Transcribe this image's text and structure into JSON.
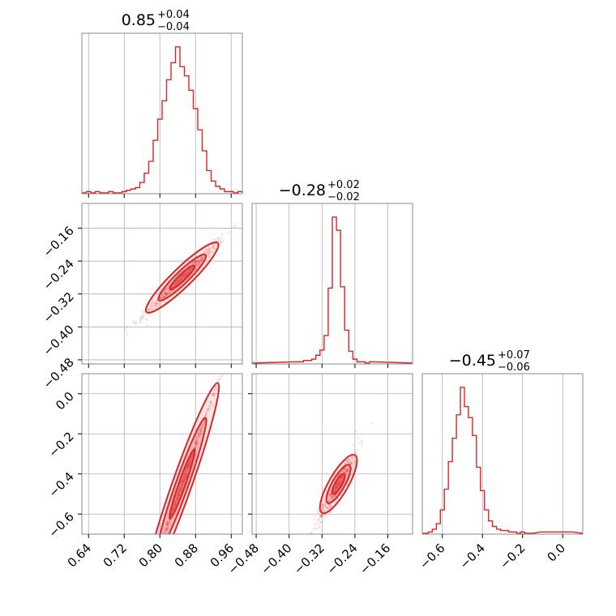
{
  "chart_data": {
    "type": "corner",
    "color": "#d62728",
    "parameters": [
      {
        "title_center": "0.85",
        "title_plus": "+0.04",
        "title_minus": "−0.04",
        "range": [
          0.625,
          0.985
        ],
        "ticks": [
          0.64,
          0.72,
          0.8,
          0.88,
          0.96
        ],
        "tick_labels": [
          "0.64",
          "0.72",
          "0.80",
          "0.88",
          "0.96"
        ]
      },
      {
        "title_center": "−0.28",
        "title_plus": "+0.02",
        "title_minus": "−0.02",
        "range": [
          -0.49,
          -0.1
        ],
        "ticks": [
          -0.48,
          -0.4,
          -0.32,
          -0.24,
          -0.16
        ],
        "tick_labels": [
          "−0.48",
          "−0.40",
          "−0.32",
          "−0.24",
          "−0.16"
        ]
      },
      {
        "title_center": "−0.45",
        "title_plus": "+0.07",
        "title_minus": "−0.06",
        "range": [
          -0.7,
          0.1
        ],
        "ticks": [
          -0.6,
          -0.4,
          -0.2,
          0.0
        ],
        "tick_labels": [
          "−0.6",
          "−0.4",
          "−0.2",
          "0.0"
        ]
      }
    ],
    "histograms": [
      {
        "x": [
          0.63,
          0.64,
          0.65,
          0.66,
          0.67,
          0.68,
          0.69,
          0.7,
          0.71,
          0.72,
          0.73,
          0.74,
          0.75,
          0.76,
          0.77,
          0.78,
          0.79,
          0.8,
          0.81,
          0.82,
          0.83,
          0.84,
          0.85,
          0.86,
          0.87,
          0.88,
          0.89,
          0.9,
          0.91,
          0.92,
          0.93,
          0.94,
          0.95,
          0.96,
          0.97,
          0.98
        ],
        "counts": [
          0,
          1,
          0,
          1,
          0,
          0,
          1,
          0,
          0,
          1,
          2,
          3,
          4,
          8,
          15,
          24,
          40,
          56,
          70,
          86,
          99,
          111,
          96,
          89,
          78,
          64,
          48,
          32,
          17,
          9,
          5,
          3,
          1,
          1,
          0,
          1
        ]
      },
      {
        "x": [
          -0.38,
          -0.37,
          -0.36,
          -0.35,
          -0.34,
          -0.33,
          -0.32,
          -0.31,
          -0.3,
          -0.29,
          -0.28,
          -0.27,
          -0.26,
          -0.25,
          -0.24,
          -0.23,
          -0.22,
          -0.21,
          -0.2
        ],
        "counts": [
          1,
          1,
          2,
          2,
          3,
          6,
          10,
          21,
          57,
          111,
          101,
          58,
          25,
          9,
          3,
          1,
          1,
          0,
          1
        ],
        "note": ""
      },
      {
        "x": [
          -0.68,
          -0.66,
          -0.64,
          -0.62,
          -0.6,
          -0.58,
          -0.56,
          -0.54,
          -0.52,
          -0.5,
          -0.48,
          -0.46,
          -0.44,
          -0.42,
          -0.4,
          -0.38,
          -0.36,
          -0.34,
          -0.32,
          -0.3,
          -0.28,
          -0.26,
          -0.24,
          -0.22,
          -0.2,
          -0.18,
          -0.16,
          -0.1,
          -0.06,
          -0.02,
          0.04
        ],
        "counts": [
          0,
          1,
          3,
          7,
          17,
          32,
          52,
          69,
          86,
          106,
          92,
          84,
          71,
          48,
          31,
          17,
          9,
          5,
          3,
          2,
          2,
          1,
          1,
          0,
          1,
          0,
          0,
          1,
          1,
          1,
          1
        ]
      }
    ],
    "pairs": [
      {
        "row": 1,
        "col": 0,
        "slope": 1.05,
        "corr": 0.9
      },
      {
        "row": 2,
        "col": 0,
        "slope": 6.3,
        "corr": 0.98
      },
      {
        "row": 2,
        "col": 1,
        "slope": 3.6,
        "corr": 0.86
      }
    ],
    "center": [
      0.85,
      -0.28,
      -0.45
    ],
    "sigma": [
      0.04,
      0.02,
      0.065
    ]
  }
}
